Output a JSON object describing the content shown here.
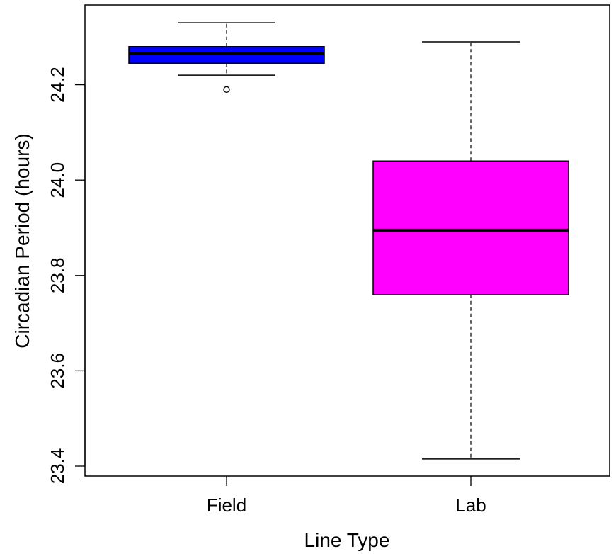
{
  "chart_data": {
    "type": "boxplot",
    "title": "",
    "xlabel": "Line Type",
    "ylabel": "Circadian Period (hours)",
    "ylim": [
      23.4,
      24.3
    ],
    "yticks": [
      "23.4",
      "23.6",
      "23.8",
      "24.0",
      "24.2"
    ],
    "grid": false,
    "categories": [
      "Field",
      "Lab"
    ],
    "boxes": [
      {
        "name": "Field",
        "color": "#0000ff",
        "whisker_low": 24.22,
        "q1": 24.245,
        "median": 24.265,
        "q3": 24.28,
        "whisker_high": 24.33,
        "outliers": [
          24.19
        ]
      },
      {
        "name": "Lab",
        "color": "#ff00ff",
        "whisker_low": 23.415,
        "q1": 23.76,
        "median": 23.895,
        "q3": 24.04,
        "whisker_high": 24.29,
        "outliers": []
      }
    ]
  }
}
